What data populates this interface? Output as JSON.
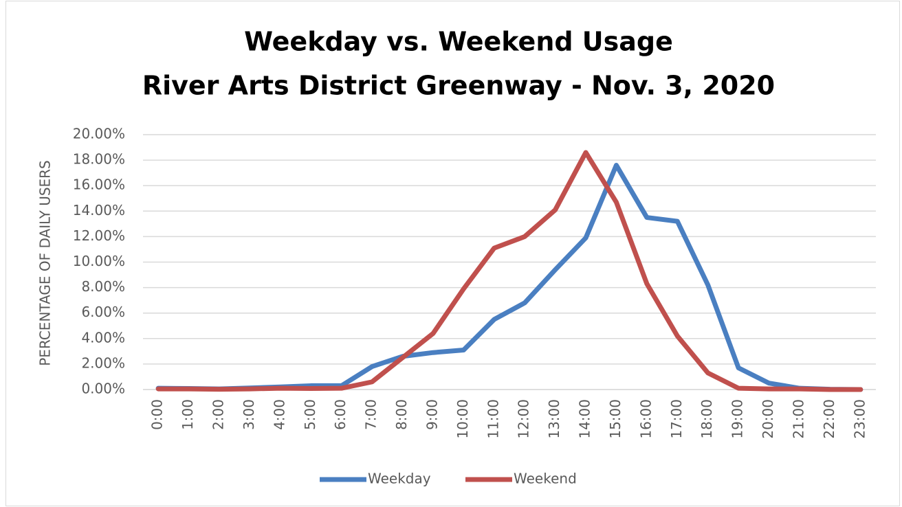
{
  "chart_data": {
    "type": "line",
    "title": "Weekday vs. Weekend Usage",
    "subtitle": "River Arts District Greenway - Nov. 3, 2020",
    "y_label": "PERCENTAGE OF DAILY USERS",
    "categories": [
      "0:00",
      "1:00",
      "2:00",
      "3:00",
      "4:00",
      "5:00",
      "6:00",
      "7:00",
      "8:00",
      "9:00",
      "10:00",
      "11:00",
      "12:00",
      "13:00",
      "14:00",
      "15:00",
      "16:00",
      "17:00",
      "18:00",
      "19:00",
      "20:00",
      "21:00",
      "22:00",
      "23:00"
    ],
    "series": [
      {
        "name": "Weekday",
        "color": "#4a7fc1",
        "values": [
          0.1,
          0.08,
          0.05,
          0.12,
          0.2,
          0.3,
          0.3,
          1.8,
          2.6,
          2.9,
          3.1,
          5.5,
          6.8,
          9.4,
          11.9,
          17.6,
          13.5,
          13.2,
          8.2,
          1.7,
          0.5,
          0.1,
          0.02,
          0
        ]
      },
      {
        "name": "Weekend",
        "color": "#c0504d",
        "values": [
          0.05,
          0.05,
          0.02,
          0.05,
          0.1,
          0.08,
          0.1,
          0.6,
          2.5,
          4.4,
          7.9,
          11.1,
          12.0,
          14.1,
          18.6,
          14.7,
          8.3,
          4.2,
          1.3,
          0.1,
          0.05,
          0.05,
          0,
          0
        ]
      }
    ],
    "ylim": [
      0,
      20
    ],
    "yticks": [
      {
        "value": 0,
        "label": "0.00%"
      },
      {
        "value": 2,
        "label": "2.00%"
      },
      {
        "value": 4,
        "label": "4.00%"
      },
      {
        "value": 6,
        "label": "6.00%"
      },
      {
        "value": 8,
        "label": "8.00%"
      },
      {
        "value": 10,
        "label": "10.00%"
      },
      {
        "value": 12,
        "label": "12.00%"
      },
      {
        "value": 14,
        "label": "14.00%"
      },
      {
        "value": 16,
        "label": "16.00%"
      },
      {
        "value": 18,
        "label": "18.00%"
      },
      {
        "value": 20,
        "label": "20.00%"
      }
    ],
    "grid": true,
    "legend": "bottom"
  }
}
